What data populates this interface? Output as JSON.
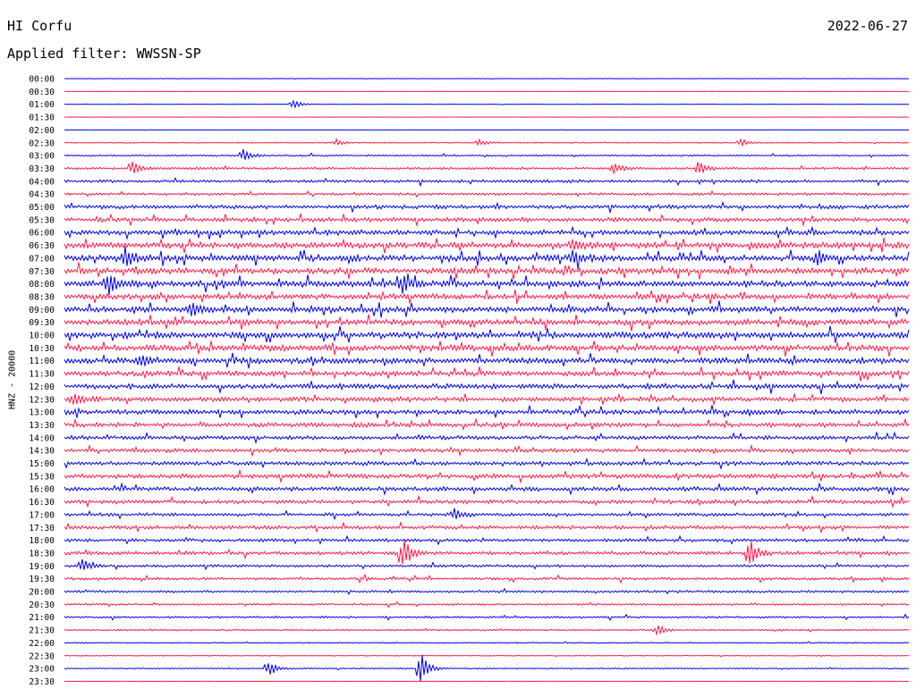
{
  "header": {
    "station": "HI Corfu",
    "date": "2022-06-27",
    "filter": "Applied filter: WWSSN-SP"
  },
  "axis": {
    "ylabel": "HNZ - 20000"
  },
  "colors": {
    "even_rows": "#0000e6",
    "odd_rows": "#ff1a4a"
  },
  "chart_data": {
    "type": "line",
    "title": "HI Corfu",
    "subtitle": "Applied filter: WWSSN-SP",
    "ylabel": "HNZ - 20000",
    "xlabel": "",
    "grid": false,
    "legend": "none",
    "row_labels": [
      "00:00",
      "00:30",
      "01:00",
      "01:30",
      "02:00",
      "02:30",
      "03:00",
      "03:30",
      "04:00",
      "04:30",
      "05:00",
      "05:30",
      "06:00",
      "06:30",
      "07:00",
      "07:30",
      "08:00",
      "08:30",
      "09:00",
      "09:30",
      "10:00",
      "10:30",
      "11:00",
      "11:30",
      "12:00",
      "12:30",
      "13:00",
      "13:30",
      "14:00",
      "14:30",
      "15:00",
      "15:30",
      "16:00",
      "16:30",
      "17:00",
      "17:30",
      "18:00",
      "18:30",
      "19:00",
      "19:30",
      "20:00",
      "20:30",
      "21:00",
      "21:30",
      "22:00",
      "22:30",
      "23:00",
      "23:30"
    ],
    "row_colors": [
      "even_rows",
      "odd_rows"
    ],
    "row_noise_level": [
      0.2,
      0.15,
      0.25,
      0.15,
      0.25,
      0.4,
      0.8,
      1.2,
      1.5,
      1.3,
      2.0,
      2.2,
      2.5,
      3.0,
      3.2,
      3.0,
      3.2,
      2.8,
      3.0,
      3.0,
      3.2,
      3.0,
      3.0,
      2.6,
      2.6,
      2.4,
      2.4,
      2.2,
      2.0,
      2.0,
      2.0,
      2.2,
      2.2,
      2.0,
      1.6,
      1.8,
      1.6,
      1.8,
      1.4,
      1.4,
      1.2,
      1.0,
      1.0,
      0.8,
      0.6,
      0.4,
      0.6,
      0.3
    ],
    "events": [
      {
        "row": 2,
        "t": 0.27,
        "amp": 6
      },
      {
        "row": 5,
        "t": 0.32,
        "amp": 5
      },
      {
        "row": 5,
        "t": 0.49,
        "amp": 5
      },
      {
        "row": 5,
        "t": 0.8,
        "amp": 5
      },
      {
        "row": 6,
        "t": 0.21,
        "amp": 8
      },
      {
        "row": 7,
        "t": 0.08,
        "amp": 7
      },
      {
        "row": 7,
        "t": 0.65,
        "amp": 7
      },
      {
        "row": 7,
        "t": 0.75,
        "amp": 8
      },
      {
        "row": 13,
        "t": 0.6,
        "amp": 10
      },
      {
        "row": 14,
        "t": 0.07,
        "amp": 14
      },
      {
        "row": 14,
        "t": 0.6,
        "amp": 10
      },
      {
        "row": 14,
        "t": 0.89,
        "amp": 12
      },
      {
        "row": 16,
        "t": 0.05,
        "amp": 14
      },
      {
        "row": 16,
        "t": 0.4,
        "amp": 10
      },
      {
        "row": 18,
        "t": 0.15,
        "amp": 9
      },
      {
        "row": 22,
        "t": 0.09,
        "amp": 8
      },
      {
        "row": 25,
        "t": 0.01,
        "amp": 8
      },
      {
        "row": 34,
        "t": 0.46,
        "amp": 8
      },
      {
        "row": 37,
        "t": 0.4,
        "amp": 22
      },
      {
        "row": 37,
        "t": 0.81,
        "amp": 18
      },
      {
        "row": 38,
        "t": 0.02,
        "amp": 8
      },
      {
        "row": 43,
        "t": 0.7,
        "amp": 7
      },
      {
        "row": 46,
        "t": 0.24,
        "amp": 12
      },
      {
        "row": 46,
        "t": 0.42,
        "amp": 24
      }
    ]
  }
}
